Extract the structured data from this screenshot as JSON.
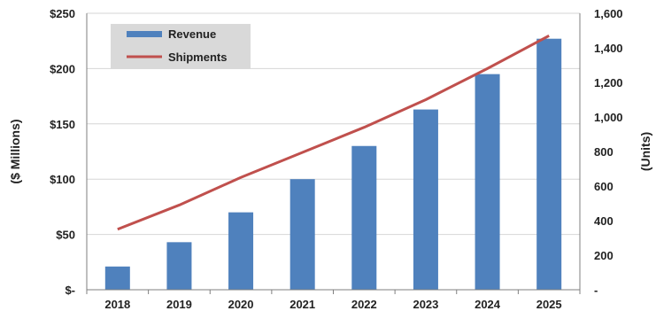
{
  "colors": {
    "bar": "#4f81bd",
    "line": "#c0504d",
    "grid": "#d6d6d6",
    "axis": "#7f7f7f",
    "legend_bg": "#d9d9d9"
  },
  "chart_data": {
    "type": "bar",
    "categories": [
      "2018",
      "2019",
      "2020",
      "2021",
      "2022",
      "2023",
      "2024",
      "2025"
    ],
    "series": [
      {
        "name": "Revenue",
        "type": "bar",
        "axis": "left",
        "values": [
          21,
          43,
          70,
          100,
          130,
          163,
          195,
          227
        ]
      },
      {
        "name": "Shipments",
        "type": "line",
        "axis": "right",
        "values": [
          350,
          490,
          650,
          795,
          940,
          1100,
          1280,
          1470
        ]
      }
    ],
    "y_left": {
      "label": "($ Millions)",
      "ylim": [
        0,
        250
      ],
      "ticks": [
        0,
        50,
        100,
        150,
        200,
        250
      ],
      "tick_labels": [
        "$-",
        "$50",
        "$100",
        "$150",
        "$200",
        "$250"
      ]
    },
    "y_right": {
      "label": "(Units)",
      "ylim": [
        0,
        1600
      ],
      "ticks": [
        0,
        200,
        400,
        600,
        800,
        1000,
        1200,
        1400,
        1600
      ],
      "tick_labels": [
        "-",
        "200",
        "400",
        "600",
        "800",
        "1,000",
        "1,200",
        "1,400",
        "1,600"
      ]
    },
    "grid": true,
    "legend_position": "top-left"
  }
}
